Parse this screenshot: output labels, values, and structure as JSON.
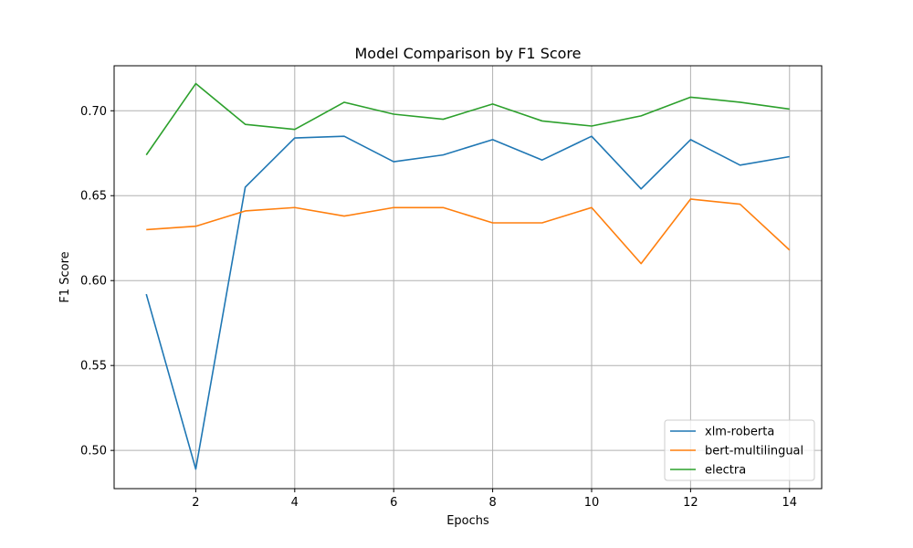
{
  "chart_data": {
    "type": "line",
    "title": "Model Comparison by F1 Score",
    "xlabel": "Epochs",
    "ylabel": "F1 Score",
    "x": [
      1,
      2,
      3,
      4,
      5,
      6,
      7,
      8,
      9,
      10,
      11,
      12,
      13,
      14
    ],
    "xlim": [
      0.35,
      14.65
    ],
    "ylim": [
      0.4775,
      0.7265
    ],
    "xticks": [
      2,
      4,
      6,
      8,
      10,
      12,
      14
    ],
    "xtick_labels": [
      "2",
      "4",
      "6",
      "8",
      "10",
      "12",
      "14"
    ],
    "yticks": [
      0.5,
      0.55,
      0.6,
      0.65,
      0.7
    ],
    "ytick_labels": [
      "0.50",
      "0.55",
      "0.60",
      "0.65",
      "0.70"
    ],
    "grid": true,
    "legend_position": "lower-right",
    "series": [
      {
        "name": "xlm-roberta",
        "color": "#1f77b4",
        "values": [
          0.592,
          0.489,
          0.655,
          0.684,
          0.685,
          0.67,
          0.674,
          0.683,
          0.671,
          0.685,
          0.654,
          0.683,
          0.668,
          0.673
        ]
      },
      {
        "name": "bert-multilingual",
        "color": "#ff7f0e",
        "values": [
          0.63,
          0.632,
          0.641,
          0.643,
          0.638,
          0.643,
          0.643,
          0.634,
          0.634,
          0.643,
          0.61,
          0.648,
          0.645,
          0.618
        ]
      },
      {
        "name": "electra",
        "color": "#2ca02c",
        "values": [
          0.674,
          0.716,
          0.692,
          0.689,
          0.705,
          0.698,
          0.695,
          0.704,
          0.694,
          0.691,
          0.697,
          0.708,
          0.705,
          0.701
        ]
      }
    ]
  }
}
